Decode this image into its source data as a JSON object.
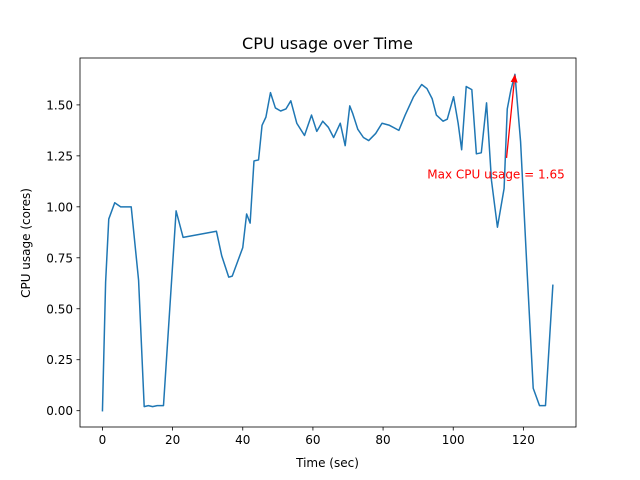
{
  "chart_data": {
    "type": "line",
    "title": "CPU usage over Time",
    "xlabel": "Time (sec)",
    "ylabel": "CPU usage (cores)",
    "xlim": [
      -6.4,
      135
    ],
    "ylim": [
      -0.08,
      1.73
    ],
    "xticks": [
      0,
      20,
      40,
      60,
      80,
      100,
      120
    ],
    "yticks": [
      0.0,
      0.25,
      0.5,
      0.75,
      1.0,
      1.25,
      1.5
    ],
    "ytick_labels": [
      "0.00",
      "0.25",
      "0.50",
      "0.75",
      "1.00",
      "1.25",
      "1.50"
    ],
    "grid": false,
    "series_color": "#1f77b4",
    "annotation_color": "#ff0000",
    "series": [
      {
        "x": [
          0,
          0.9,
          1.8,
          3.5,
          5.2,
          6.9,
          8.2,
          10.3,
          11.9,
          13.1,
          14.3,
          15.6,
          17.4,
          21.0,
          23.0,
          32.5,
          34.0,
          36.0,
          37.0,
          38.5,
          40.0,
          41.1,
          42.1,
          43.2,
          44.5,
          45.5,
          46.6,
          47.9,
          49.3,
          50.8,
          52.3,
          53.7,
          55.4,
          57.6,
          59.6,
          61.1,
          62.8,
          64.4,
          65.9,
          67.8,
          69.2,
          70.5,
          71.3,
          72.8,
          74.4,
          75.9,
          77.9,
          79.7,
          81.8,
          84.5,
          86.3,
          88.7,
          91.0,
          92.5,
          94.0,
          95.2,
          97.1,
          98.3,
          100.1,
          101.4,
          102.4,
          103.7,
          105.3,
          106.6,
          108.0,
          109.5,
          110.9,
          112.6,
          114.5,
          115.4,
          116.4,
          117.6,
          119.2,
          121.1,
          122.8,
          124.6,
          126.3,
          128.4
        ],
        "y": [
          0.0,
          0.63,
          0.94,
          1.02,
          1.0,
          1.0,
          1.0,
          0.64,
          0.02,
          0.025,
          0.02,
          0.025,
          0.025,
          0.98,
          0.85,
          0.88,
          0.76,
          0.655,
          0.66,
          0.73,
          0.8,
          0.965,
          0.92,
          1.225,
          1.23,
          1.4,
          1.44,
          1.56,
          1.485,
          1.47,
          1.48,
          1.52,
          1.41,
          1.35,
          1.45,
          1.37,
          1.42,
          1.39,
          1.34,
          1.41,
          1.3,
          1.495,
          1.46,
          1.38,
          1.34,
          1.325,
          1.36,
          1.41,
          1.4,
          1.375,
          1.45,
          1.54,
          1.6,
          1.58,
          1.53,
          1.45,
          1.42,
          1.43,
          1.54,
          1.41,
          1.28,
          1.59,
          1.575,
          1.26,
          1.265,
          1.51,
          1.13,
          0.9,
          1.09,
          1.48,
          1.57,
          1.65,
          1.32,
          0.67,
          0.11,
          0.025,
          0.025,
          0.615
        ]
      }
    ],
    "annotation": {
      "text": "Max CPU usage = 1.65",
      "xy": [
        117.6,
        1.65
      ],
      "xytext": [
        92.6,
        1.16
      ],
      "arrow_tail": [
        115.2,
        1.24
      ]
    }
  }
}
